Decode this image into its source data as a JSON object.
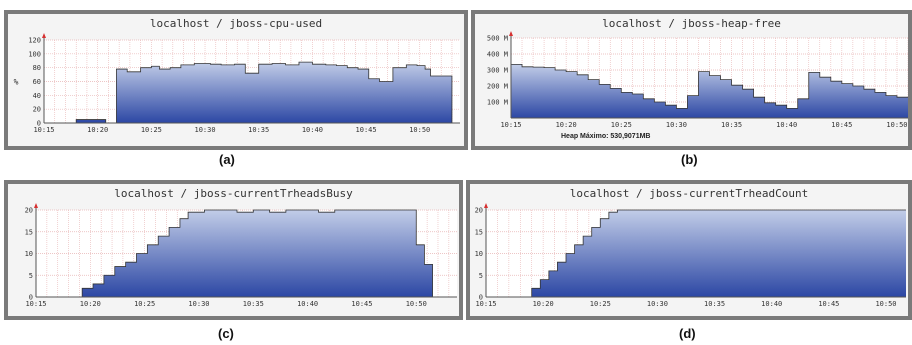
{
  "chart_data": [
    {
      "type": "area",
      "title": "localhost / jboss-cpu-used",
      "ylabel": "%",
      "ylim": [
        0,
        120
      ],
      "yticks": [
        "0",
        "20",
        "40",
        "60",
        "80",
        "100",
        "120"
      ],
      "xlim": [
        0,
        7.75
      ],
      "xticks": [
        "10:15",
        "10:20",
        "10:25",
        "10:30",
        "10:35",
        "10:40",
        "10:45",
        "10:50"
      ],
      "series": [
        {
          "x": [
            0,
            0.5,
            0.6,
            1.1,
            1.15,
            1.35,
            1.55,
            1.8,
            2.0,
            2.15,
            2.35,
            2.55,
            2.8,
            3.1,
            3.3,
            3.55,
            3.75,
            4.0,
            4.25,
            4.5,
            4.75,
            5.0,
            5.25,
            5.45,
            5.65,
            5.85,
            6.05,
            6.25,
            6.5,
            6.75,
            6.95,
            7.1,
            7.2,
            7.6,
            7.75
          ],
          "y": [
            0,
            0,
            5,
            5,
            0,
            78,
            74,
            80,
            82,
            78,
            80,
            84,
            86,
            85,
            84,
            85,
            72,
            85,
            86,
            84,
            88,
            85,
            84,
            83,
            80,
            78,
            64,
            60,
            80,
            84,
            83,
            78,
            68,
            0,
            0
          ]
        }
      ]
    },
    {
      "type": "area",
      "title": "localhost / jboss-heap-free",
      "ylabel": "",
      "ylim": [
        0,
        500
      ],
      "yticks": [
        "",
        "100 M",
        "200 M",
        "300 M",
        "400 M",
        "500 M"
      ],
      "xlim": [
        0,
        7.2
      ],
      "xticks": [
        "10:15",
        "10:20",
        "10:25",
        "10:30",
        "10:35",
        "10:40",
        "10:45",
        "10:50"
      ],
      "footnote": "Heap Máximo: 530,9071MB",
      "series": [
        {
          "x": [
            0,
            0.2,
            0.4,
            0.6,
            0.8,
            1.0,
            1.2,
            1.4,
            1.6,
            1.8,
            2.0,
            2.2,
            2.4,
            2.6,
            2.8,
            3.0,
            3.2,
            3.4,
            3.6,
            3.8,
            4.0,
            4.2,
            4.4,
            4.6,
            4.8,
            5.0,
            5.2,
            5.4,
            5.6,
            5.8,
            6.0,
            6.2,
            6.4,
            6.6,
            6.8,
            7.0,
            7.2
          ],
          "y": [
            335,
            320,
            318,
            315,
            300,
            290,
            270,
            240,
            210,
            185,
            160,
            150,
            120,
            100,
            80,
            60,
            140,
            290,
            265,
            240,
            205,
            180,
            130,
            95,
            80,
            60,
            120,
            285,
            255,
            230,
            215,
            200,
            180,
            160,
            140,
            130,
            130
          ]
        }
      ]
    },
    {
      "type": "area",
      "title": "localhost / jboss-currentTrheadsBusy",
      "ylabel": "",
      "ylim": [
        0,
        20
      ],
      "yticks": [
        "0",
        "5",
        "10",
        "15",
        "20"
      ],
      "xlim": [
        0,
        7.75
      ],
      "xticks": [
        "10:15",
        "10:20",
        "10:25",
        "10:30",
        "10:35",
        "10:40",
        "10:45",
        "10:50"
      ],
      "series": [
        {
          "x": [
            0,
            0.6,
            0.85,
            1.05,
            1.25,
            1.45,
            1.65,
            1.85,
            2.05,
            2.25,
            2.45,
            2.65,
            2.8,
            3.1,
            3.4,
            3.7,
            4.0,
            4.3,
            4.6,
            4.9,
            5.2,
            5.5,
            5.8,
            6.1,
            6.4,
            6.65,
            7.0,
            7.15,
            7.3,
            7.45
          ],
          "y": [
            0,
            0,
            2,
            3,
            5,
            7,
            8,
            10,
            12,
            14,
            16,
            18,
            19.5,
            20,
            20,
            19.5,
            20,
            19.5,
            20,
            20,
            19.5,
            20,
            20,
            20,
            20,
            20,
            12,
            7.5,
            0,
            0
          ]
        }
      ]
    },
    {
      "type": "area",
      "title": "localhost / jboss-currentTrheadCount",
      "ylabel": "",
      "ylim": [
        0,
        20
      ],
      "yticks": [
        "0",
        "5",
        "10",
        "15",
        "20"
      ],
      "xlim": [
        0,
        7.35
      ],
      "xticks": [
        "10:15",
        "10:20",
        "10:25",
        "10:30",
        "10:35",
        "10:40",
        "10:45",
        "10:50"
      ],
      "series": [
        {
          "x": [
            0,
            0.65,
            0.8,
            0.95,
            1.1,
            1.25,
            1.4,
            1.55,
            1.7,
            1.85,
            2.0,
            2.15,
            2.3,
            2.5,
            7.35
          ],
          "y": [
            0,
            0,
            2,
            4,
            6,
            8,
            10,
            12,
            14,
            16,
            18,
            19.5,
            20,
            20,
            20
          ]
        }
      ]
    }
  ],
  "captions": [
    "(a)",
    "(b)",
    "(c)",
    "(d)"
  ],
  "colors": {
    "fill_top": "#c2cde8",
    "fill_bottom": "#2c47a4",
    "outline": "#333333",
    "grid": "#e8b4b4",
    "axis": "#555555",
    "arrow": "#d63030"
  }
}
